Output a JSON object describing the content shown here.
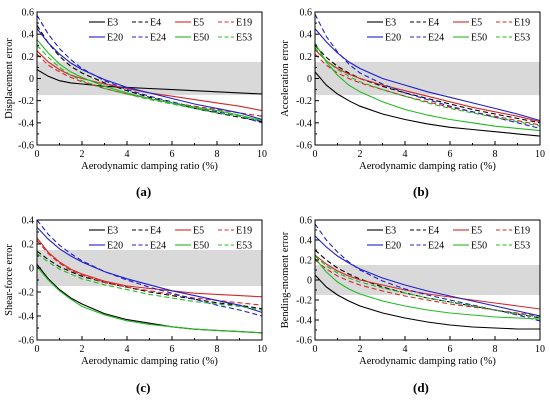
{
  "figure": {
    "series_styles": [
      {
        "name": "E3",
        "color": "#000000",
        "dash": "solid"
      },
      {
        "name": "E4",
        "color": "#000000",
        "dash": "dashed"
      },
      {
        "name": "E5",
        "color": "#d62728",
        "dash": "solid"
      },
      {
        "name": "E19",
        "color": "#d62728",
        "dash": "dashed"
      },
      {
        "name": "E20",
        "color": "#1f1fd0",
        "dash": "solid"
      },
      {
        "name": "E24",
        "color": "#1f1fd0",
        "dash": "dashed"
      },
      {
        "name": "E50",
        "color": "#22bb22",
        "dash": "solid"
      },
      {
        "name": "E53",
        "color": "#22bb22",
        "dash": "dashed"
      }
    ],
    "band": {
      "range": [
        -0.15,
        0.15
      ],
      "color": "#d9d9d9"
    }
  },
  "chart_data": [
    {
      "panel_label": "(a)",
      "type": "line",
      "xlabel": "Aerodynamic damping ratio (%)",
      "ylabel": "Displacement error",
      "xlim": [
        0,
        10
      ],
      "ylim": [
        -0.6,
        0.6
      ],
      "xticks": [
        0,
        2,
        4,
        6,
        8,
        10
      ],
      "yticks": [
        -0.6,
        -0.4,
        -0.2,
        0,
        0.2,
        0.4,
        0.6
      ],
      "grid": false,
      "legend": "top",
      "x": [
        0,
        0.5,
        1,
        1.5,
        2,
        3,
        4,
        5,
        6,
        7,
        8,
        9,
        10
      ],
      "series": [
        {
          "name": "E3",
          "values": [
            0.08,
            0.02,
            -0.02,
            -0.04,
            -0.05,
            -0.07,
            -0.08,
            -0.09,
            -0.1,
            -0.11,
            -0.12,
            -0.13,
            -0.14
          ]
        },
        {
          "name": "E4",
          "values": [
            0.48,
            0.32,
            0.2,
            0.11,
            0.05,
            -0.04,
            -0.11,
            -0.17,
            -0.22,
            -0.27,
            -0.31,
            -0.35,
            -0.39
          ]
        },
        {
          "name": "E5",
          "values": [
            0.25,
            0.15,
            0.08,
            0.03,
            0.0,
            -0.05,
            -0.09,
            -0.13,
            -0.16,
            -0.19,
            -0.22,
            -0.25,
            -0.29
          ]
        },
        {
          "name": "E19",
          "values": [
            0.22,
            0.12,
            0.06,
            0.01,
            -0.03,
            -0.09,
            -0.14,
            -0.18,
            -0.22,
            -0.25,
            -0.28,
            -0.31,
            -0.34
          ]
        },
        {
          "name": "E20",
          "values": [
            0.45,
            0.32,
            0.22,
            0.14,
            0.08,
            -0.01,
            -0.08,
            -0.13,
            -0.18,
            -0.23,
            -0.27,
            -0.31,
            -0.37
          ]
        },
        {
          "name": "E24",
          "values": [
            0.57,
            0.4,
            0.27,
            0.17,
            0.09,
            -0.02,
            -0.1,
            -0.16,
            -0.21,
            -0.26,
            -0.3,
            -0.34,
            -0.4
          ]
        },
        {
          "name": "E50",
          "values": [
            0.35,
            0.23,
            0.13,
            0.06,
            0.01,
            -0.07,
            -0.13,
            -0.18,
            -0.22,
            -0.26,
            -0.29,
            -0.33,
            -0.38
          ]
        },
        {
          "name": "E53",
          "values": [
            0.3,
            0.19,
            0.1,
            0.03,
            -0.02,
            -0.09,
            -0.14,
            -0.19,
            -0.23,
            -0.27,
            -0.31,
            -0.34,
            -0.38
          ]
        }
      ]
    },
    {
      "panel_label": "(b)",
      "type": "line",
      "xlabel": "Aerodynamic damping ratio (%)",
      "ylabel": "Acceleration error",
      "xlim": [
        0,
        10
      ],
      "ylim": [
        -0.6,
        0.6
      ],
      "xticks": [
        0,
        2,
        4,
        6,
        8,
        10
      ],
      "yticks": [
        -0.6,
        -0.4,
        -0.2,
        0,
        0.2,
        0.4,
        0.6
      ],
      "grid": false,
      "legend": "top",
      "x": [
        0,
        0.5,
        1,
        1.5,
        2,
        3,
        4,
        5,
        6,
        7,
        8,
        9,
        10
      ],
      "series": [
        {
          "name": "E3",
          "values": [
            0.06,
            -0.06,
            -0.14,
            -0.2,
            -0.25,
            -0.32,
            -0.37,
            -0.41,
            -0.44,
            -0.46,
            -0.48,
            -0.5,
            -0.52
          ]
        },
        {
          "name": "E4",
          "values": [
            0.3,
            0.19,
            0.11,
            0.05,
            0.0,
            -0.07,
            -0.13,
            -0.18,
            -0.23,
            -0.28,
            -0.32,
            -0.36,
            -0.4
          ]
        },
        {
          "name": "E5",
          "values": [
            0.26,
            0.16,
            0.09,
            0.04,
            0.0,
            -0.06,
            -0.11,
            -0.16,
            -0.21,
            -0.26,
            -0.3,
            -0.34,
            -0.39
          ]
        },
        {
          "name": "E19",
          "values": [
            0.22,
            0.12,
            0.05,
            0.0,
            -0.04,
            -0.1,
            -0.16,
            -0.21,
            -0.26,
            -0.3,
            -0.34,
            -0.38,
            -0.42
          ]
        },
        {
          "name": "E20",
          "values": [
            0.45,
            0.33,
            0.23,
            0.15,
            0.09,
            0.0,
            -0.06,
            -0.12,
            -0.17,
            -0.22,
            -0.27,
            -0.32,
            -0.38
          ]
        },
        {
          "name": "E24",
          "values": [
            0.58,
            0.38,
            0.24,
            0.13,
            0.05,
            -0.05,
            -0.13,
            -0.19,
            -0.25,
            -0.3,
            -0.35,
            -0.4,
            -0.45
          ]
        },
        {
          "name": "E50",
          "values": [
            0.32,
            0.15,
            0.03,
            -0.06,
            -0.12,
            -0.21,
            -0.28,
            -0.33,
            -0.37,
            -0.4,
            -0.43,
            -0.45,
            -0.47
          ]
        },
        {
          "name": "E53",
          "values": [
            0.28,
            0.16,
            0.08,
            0.02,
            -0.03,
            -0.1,
            -0.16,
            -0.22,
            -0.27,
            -0.31,
            -0.35,
            -0.39,
            -0.43
          ]
        }
      ]
    },
    {
      "panel_label": "(c)",
      "type": "line",
      "xlabel": "Aerodynamic damping ratio (%)",
      "ylabel": "Shear-force error",
      "xlim": [
        0,
        10
      ],
      "ylim": [
        -0.6,
        0.4
      ],
      "xticks": [
        0,
        2,
        4,
        6,
        8,
        10
      ],
      "yticks": [
        -0.6,
        -0.4,
        -0.2,
        0,
        0.2,
        0.4
      ],
      "grid": false,
      "legend": "top",
      "x": [
        0,
        0.5,
        1,
        1.5,
        2,
        3,
        4,
        5,
        6,
        7,
        8,
        9,
        10
      ],
      "series": [
        {
          "name": "E3",
          "values": [
            0.03,
            -0.09,
            -0.18,
            -0.25,
            -0.3,
            -0.38,
            -0.43,
            -0.46,
            -0.49,
            -0.51,
            -0.52,
            -0.53,
            -0.54
          ]
        },
        {
          "name": "E4",
          "values": [
            0.14,
            0.07,
            0.01,
            -0.03,
            -0.07,
            -0.12,
            -0.16,
            -0.2,
            -0.23,
            -0.26,
            -0.29,
            -0.31,
            -0.34
          ]
        },
        {
          "name": "E5",
          "values": [
            0.25,
            0.13,
            0.05,
            -0.01,
            -0.05,
            -0.11,
            -0.15,
            -0.17,
            -0.19,
            -0.21,
            -0.22,
            -0.23,
            -0.24
          ]
        },
        {
          "name": "E19",
          "values": [
            0.23,
            0.12,
            0.04,
            -0.02,
            -0.06,
            -0.12,
            -0.16,
            -0.19,
            -0.22,
            -0.25,
            -0.27,
            -0.29,
            -0.31
          ]
        },
        {
          "name": "E20",
          "values": [
            0.34,
            0.24,
            0.16,
            0.1,
            0.05,
            -0.03,
            -0.09,
            -0.14,
            -0.19,
            -0.23,
            -0.27,
            -0.31,
            -0.37
          ]
        },
        {
          "name": "E24",
          "values": [
            0.4,
            0.28,
            0.19,
            0.12,
            0.06,
            -0.03,
            -0.1,
            -0.16,
            -0.21,
            -0.26,
            -0.31,
            -0.35,
            -0.4
          ]
        },
        {
          "name": "E50",
          "values": [
            0.01,
            -0.1,
            -0.19,
            -0.26,
            -0.32,
            -0.39,
            -0.44,
            -0.47,
            -0.49,
            -0.51,
            -0.52,
            -0.53,
            -0.54
          ]
        },
        {
          "name": "E53",
          "values": [
            0.12,
            0.05,
            -0.01,
            -0.05,
            -0.09,
            -0.14,
            -0.18,
            -0.22,
            -0.25,
            -0.28,
            -0.3,
            -0.32,
            -0.35
          ]
        }
      ]
    },
    {
      "panel_label": "(d)",
      "type": "line",
      "xlabel": "Aerodynamic damping ratio (%)",
      "ylabel": "Bending-moment error",
      "xlim": [
        0,
        10
      ],
      "ylim": [
        -0.6,
        0.6
      ],
      "xticks": [
        0,
        2,
        4,
        6,
        8,
        10
      ],
      "yticks": [
        -0.6,
        -0.4,
        -0.2,
        0,
        0.2,
        0.4,
        0.6
      ],
      "grid": false,
      "legend": "top",
      "x": [
        0,
        0.5,
        1,
        1.5,
        2,
        3,
        4,
        5,
        6,
        7,
        8,
        9,
        10
      ],
      "series": [
        {
          "name": "E3",
          "values": [
            0.05,
            -0.07,
            -0.15,
            -0.21,
            -0.26,
            -0.33,
            -0.38,
            -0.42,
            -0.45,
            -0.47,
            -0.48,
            -0.49,
            -0.49
          ]
        },
        {
          "name": "E4",
          "values": [
            0.3,
            0.2,
            0.12,
            0.06,
            0.01,
            -0.07,
            -0.13,
            -0.18,
            -0.22,
            -0.26,
            -0.3,
            -0.34,
            -0.38
          ]
        },
        {
          "name": "E5",
          "values": [
            0.25,
            0.16,
            0.09,
            0.04,
            0.0,
            -0.05,
            -0.1,
            -0.14,
            -0.17,
            -0.2,
            -0.23,
            -0.26,
            -0.29
          ]
        },
        {
          "name": "E19",
          "values": [
            0.2,
            0.11,
            0.04,
            -0.01,
            -0.05,
            -0.11,
            -0.16,
            -0.2,
            -0.24,
            -0.27,
            -0.3,
            -0.33,
            -0.36
          ]
        },
        {
          "name": "E20",
          "values": [
            0.44,
            0.33,
            0.24,
            0.17,
            0.11,
            0.02,
            -0.05,
            -0.11,
            -0.16,
            -0.21,
            -0.26,
            -0.31,
            -0.36
          ]
        },
        {
          "name": "E24",
          "values": [
            0.56,
            0.4,
            0.28,
            0.18,
            0.1,
            -0.01,
            -0.09,
            -0.15,
            -0.2,
            -0.25,
            -0.3,
            -0.35,
            -0.41
          ]
        },
        {
          "name": "E50",
          "values": [
            0.22,
            0.08,
            -0.02,
            -0.09,
            -0.14,
            -0.21,
            -0.26,
            -0.3,
            -0.33,
            -0.35,
            -0.37,
            -0.38,
            -0.39
          ]
        },
        {
          "name": "E53",
          "values": [
            0.24,
            0.14,
            0.07,
            0.02,
            -0.02,
            -0.08,
            -0.13,
            -0.18,
            -0.22,
            -0.26,
            -0.3,
            -0.34,
            -0.37
          ]
        }
      ]
    }
  ]
}
